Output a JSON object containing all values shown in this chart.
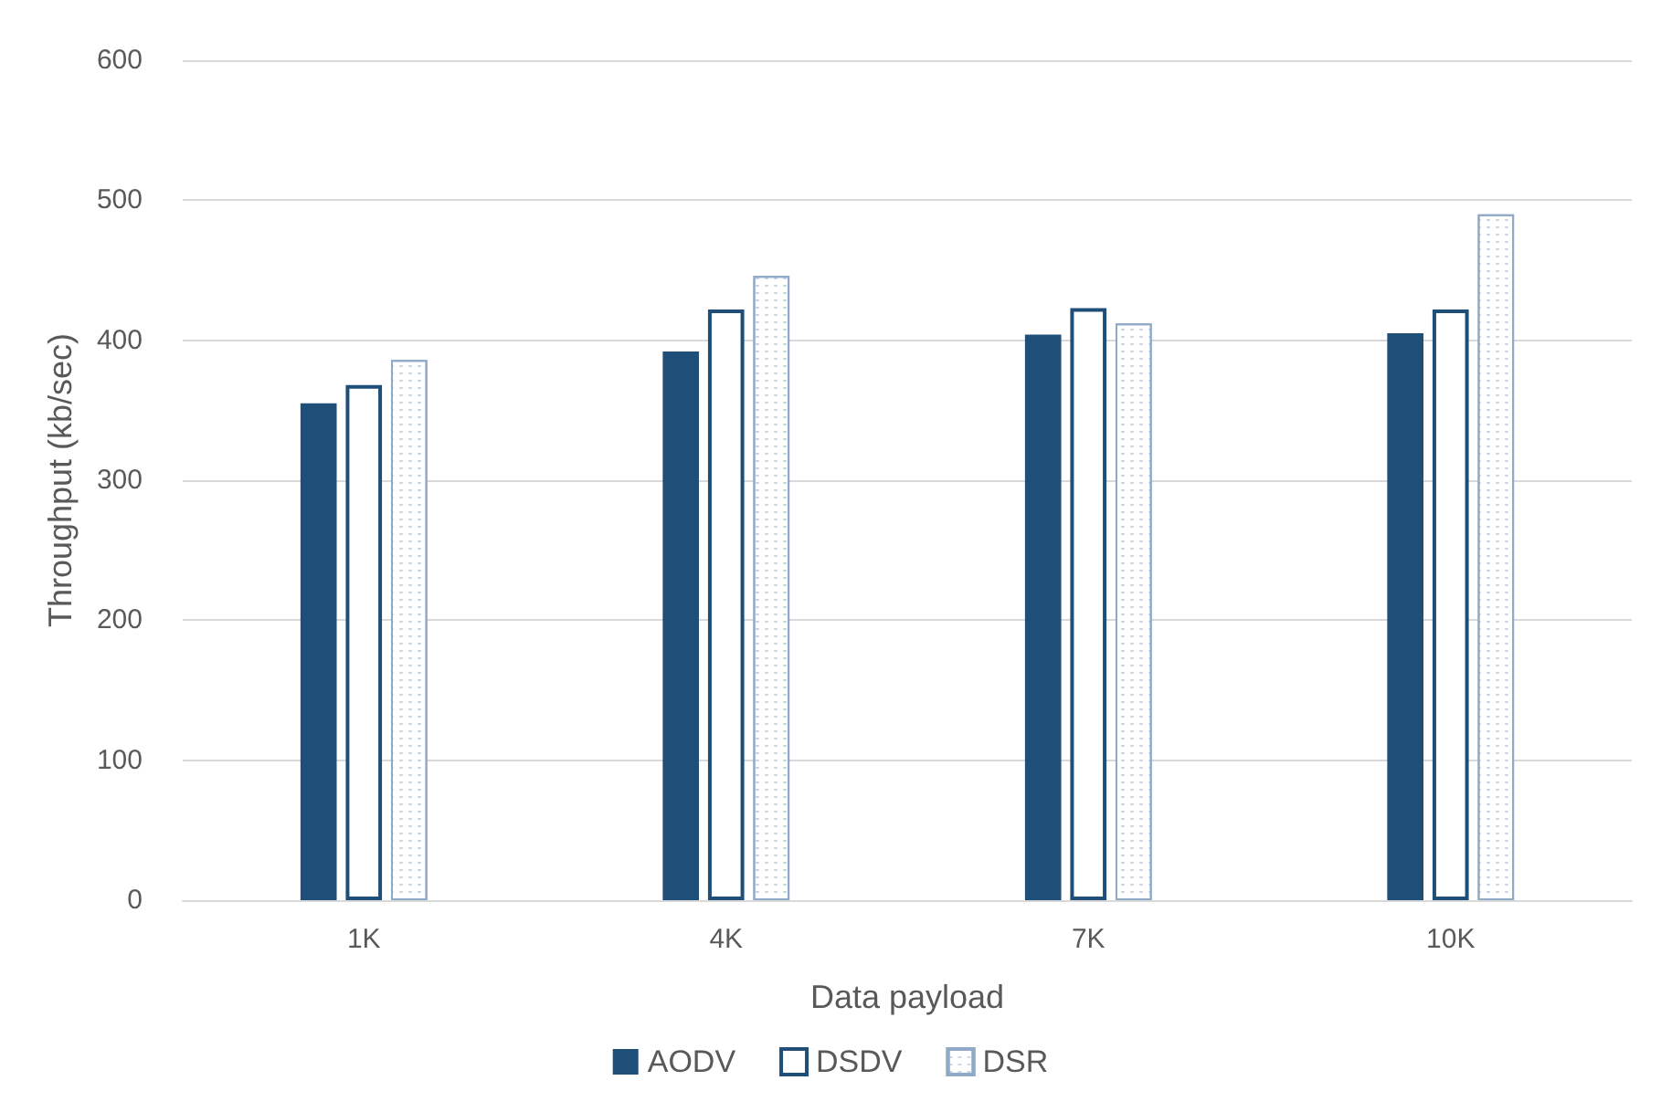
{
  "chart_data": {
    "type": "bar",
    "xlabel": "Data payload",
    "ylabel": "Throughput (kb/sec)",
    "categories": [
      "1K",
      "4K",
      "7K",
      "10K"
    ],
    "series": [
      {
        "name": "AODV",
        "color": "#1f4e79",
        "values": [
          355,
          392,
          404,
          405
        ]
      },
      {
        "name": "DSDV",
        "color": "#1f4e79",
        "values": [
          368,
          422,
          423,
          422
        ]
      },
      {
        "name": "DSR",
        "color": "#8fa9c8",
        "values": [
          386,
          446,
          412,
          490
        ]
      }
    ],
    "ylim": [
      0,
      600
    ],
    "yticks": [
      0,
      100,
      200,
      300,
      400,
      500,
      600
    ],
    "grid": "y",
    "legend": "bottom"
  }
}
